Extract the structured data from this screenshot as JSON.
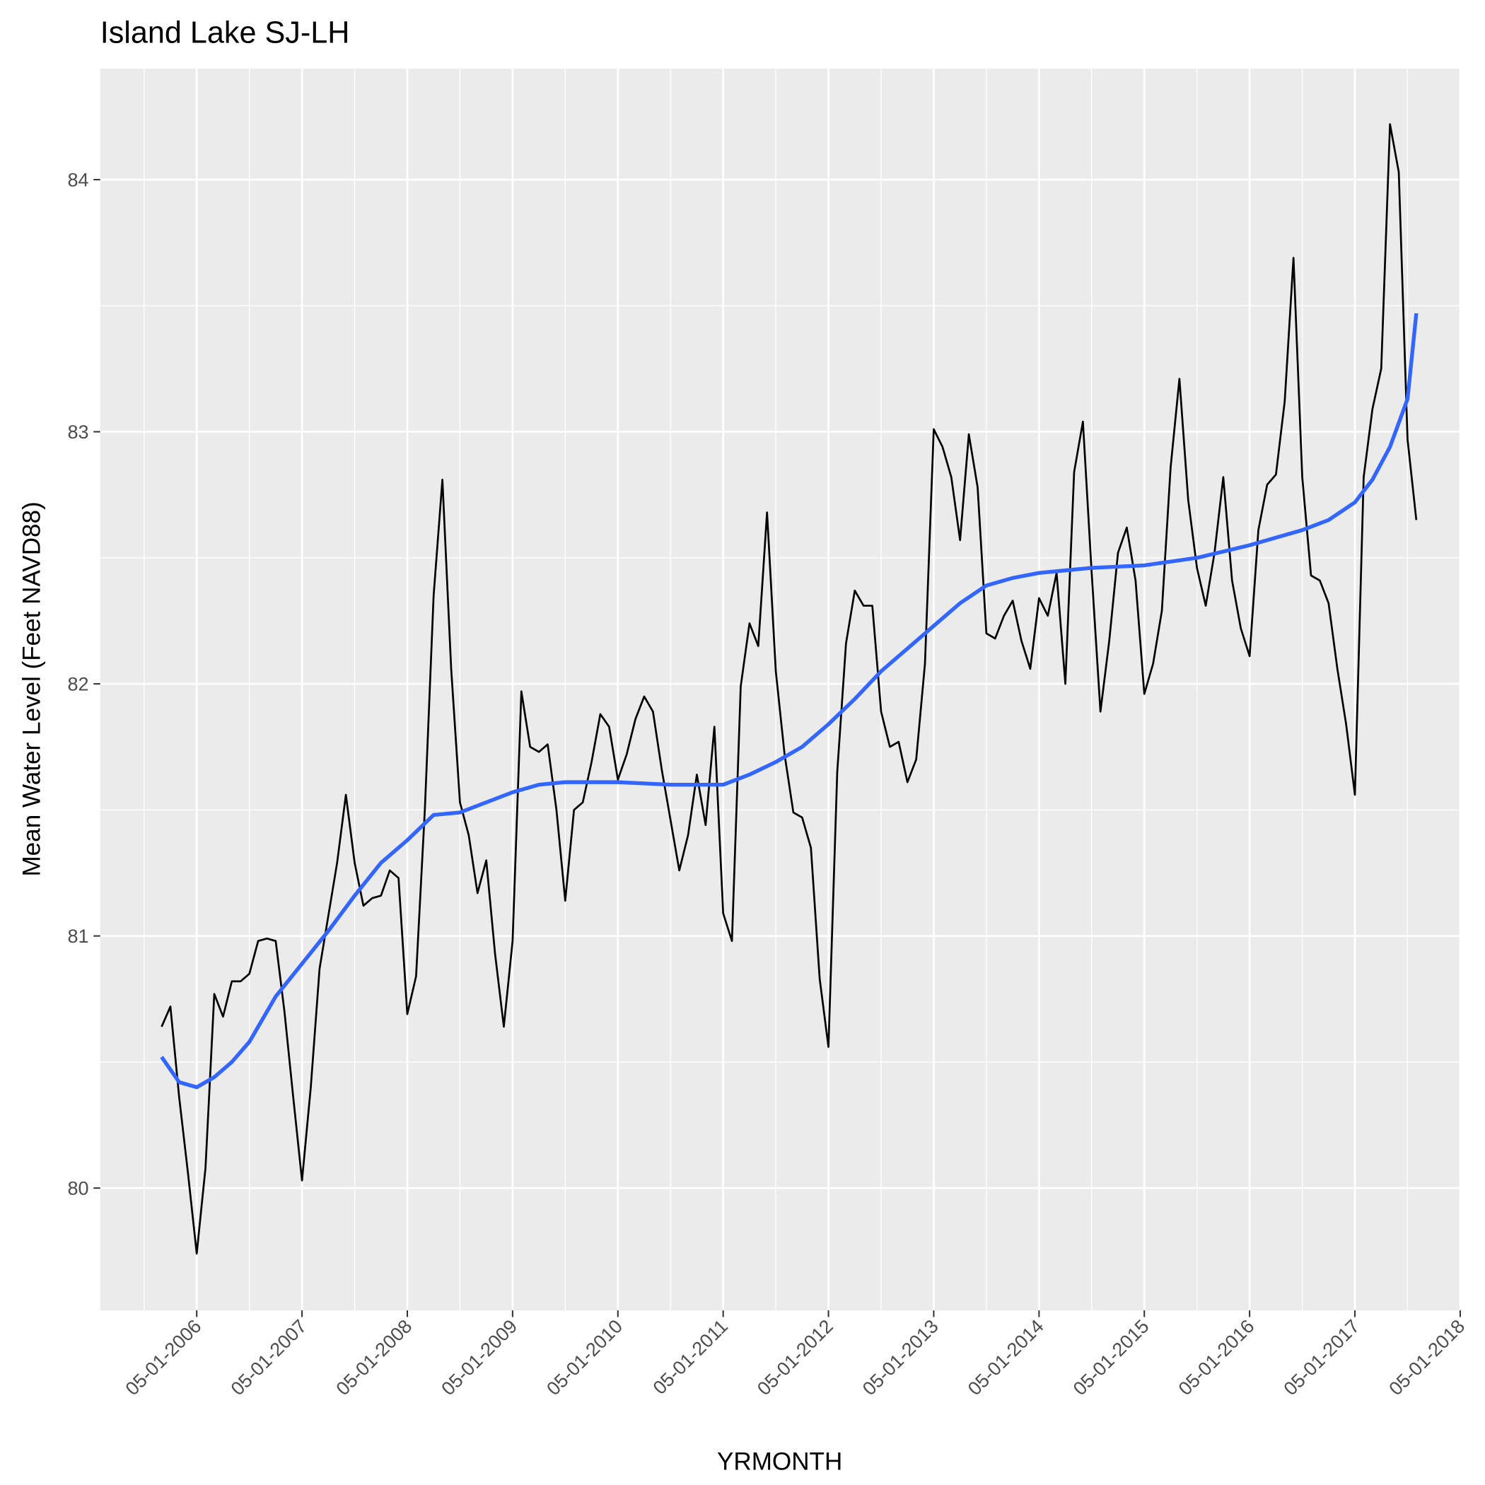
{
  "chart_data": {
    "type": "line",
    "title": "Island Lake SJ-LH",
    "x_label": "YRMONTH",
    "y_label": "Mean Water Level (Feet NAVD88)",
    "x": [
      "2005-09",
      "2005-10",
      "2005-11",
      "2005-12",
      "2006-01",
      "2006-02",
      "2006-03",
      "2006-04",
      "2006-05",
      "2006-06",
      "2006-07",
      "2006-08",
      "2006-09",
      "2006-10",
      "2006-11",
      "2006-12",
      "2007-01",
      "2007-02",
      "2007-03",
      "2007-04",
      "2007-05",
      "2007-06",
      "2007-07",
      "2007-08",
      "2007-09",
      "2007-10",
      "2007-11",
      "2007-12",
      "2008-01",
      "2008-02",
      "2008-03",
      "2008-04",
      "2008-05",
      "2008-06",
      "2008-07",
      "2008-08",
      "2008-09",
      "2008-10",
      "2008-11",
      "2008-12",
      "2009-01",
      "2009-02",
      "2009-03",
      "2009-04",
      "2009-05",
      "2009-06",
      "2009-07",
      "2009-08",
      "2009-09",
      "2009-10",
      "2009-11",
      "2009-12",
      "2010-01",
      "2010-02",
      "2010-03",
      "2010-04",
      "2010-05",
      "2010-06",
      "2010-07",
      "2010-08",
      "2010-09",
      "2010-10",
      "2010-11",
      "2010-12",
      "2011-01",
      "2011-02",
      "2011-03",
      "2011-04",
      "2011-05",
      "2011-06",
      "2011-07",
      "2011-08",
      "2011-09",
      "2011-10",
      "2011-11",
      "2011-12",
      "2012-01",
      "2012-02",
      "2012-03",
      "2012-04",
      "2012-05",
      "2012-06",
      "2012-07",
      "2012-08",
      "2012-09",
      "2012-10",
      "2012-11",
      "2012-12",
      "2013-01",
      "2013-02",
      "2013-03",
      "2013-04",
      "2013-05",
      "2013-06",
      "2013-07",
      "2013-08",
      "2013-09",
      "2013-10",
      "2013-11",
      "2013-12",
      "2014-01",
      "2014-02",
      "2014-03",
      "2014-04",
      "2014-05",
      "2014-06",
      "2014-07",
      "2014-08",
      "2014-09",
      "2014-10",
      "2014-11",
      "2014-12",
      "2015-01",
      "2015-02",
      "2015-03",
      "2015-04",
      "2015-05",
      "2015-06",
      "2015-07",
      "2015-08",
      "2015-09",
      "2015-10",
      "2015-11",
      "2015-12",
      "2016-01",
      "2016-02",
      "2016-03",
      "2016-04",
      "2016-05",
      "2016-06",
      "2016-07",
      "2016-08",
      "2016-09",
      "2016-10",
      "2016-11",
      "2016-12",
      "2017-01",
      "2017-02",
      "2017-03",
      "2017-04",
      "2017-05",
      "2017-06",
      "2017-07",
      "2017-08"
    ],
    "series": [
      {
        "color": "#000000",
        "values": [
          80.64,
          80.72,
          80.36,
          80.06,
          79.74,
          80.08,
          80.77,
          80.68,
          80.82,
          80.82,
          80.85,
          80.98,
          80.99,
          80.98,
          80.7,
          80.36,
          80.03,
          80.4,
          80.87,
          81.08,
          81.29,
          81.56,
          81.29,
          81.12,
          81.15,
          81.16,
          81.26,
          81.23,
          80.69,
          80.84,
          81.5,
          82.35,
          82.81,
          82.06,
          81.53,
          81.4,
          81.17,
          81.3,
          80.93,
          80.64,
          80.98,
          81.97,
          81.75,
          81.73,
          81.76,
          81.5,
          81.14,
          81.5,
          81.53,
          81.69,
          81.88,
          81.83,
          81.62,
          81.72,
          81.86,
          81.95,
          81.89,
          81.66,
          81.46,
          81.26,
          81.4,
          81.64,
          81.44,
          81.83,
          81.09,
          80.98,
          81.99,
          82.24,
          82.15,
          82.68,
          82.05,
          81.72,
          81.49,
          81.47,
          81.35,
          80.83,
          80.56,
          81.65,
          82.16,
          82.37,
          82.31,
          82.31,
          81.89,
          81.75,
          81.77,
          81.61,
          81.7,
          82.08,
          83.01,
          82.94,
          82.82,
          82.57,
          82.99,
          82.78,
          82.2,
          82.18,
          82.27,
          82.33,
          82.17,
          82.06,
          82.34,
          82.27,
          82.44,
          82.0,
          82.84,
          83.04,
          82.44,
          81.89,
          82.17,
          82.52,
          82.62,
          82.41,
          81.96,
          82.08,
          82.29,
          82.86,
          83.21,
          82.73,
          82.46,
          82.31,
          82.52,
          82.82,
          82.41,
          82.22,
          82.11,
          82.61,
          82.79,
          82.83,
          83.12,
          83.69,
          82.82,
          82.43,
          82.41,
          82.32,
          82.06,
          81.84,
          81.56,
          82.82,
          83.09,
          83.25,
          84.22,
          84.03,
          82.97,
          82.65
        ]
      },
      {
        "color": "#3366ff",
        "x": [
          "2005-09",
          "2005-11",
          "2006-01",
          "2006-03",
          "2006-05",
          "2006-07",
          "2006-10",
          "2007-01",
          "2007-04",
          "2007-07",
          "2007-10",
          "2008-01",
          "2008-04",
          "2008-07",
          "2008-10",
          "2009-01",
          "2009-04",
          "2009-07",
          "2010-01",
          "2010-07",
          "2011-01",
          "2011-04",
          "2011-07",
          "2011-10",
          "2012-01",
          "2012-04",
          "2012-07",
          "2012-10",
          "2013-01",
          "2013-04",
          "2013-07",
          "2013-10",
          "2014-01",
          "2014-07",
          "2015-01",
          "2015-07",
          "2016-01",
          "2016-07",
          "2016-10",
          "2017-01",
          "2017-03",
          "2017-05",
          "2017-07",
          "2017-08"
        ],
        "values": [
          80.52,
          80.42,
          80.4,
          80.44,
          80.5,
          80.58,
          80.76,
          80.89,
          81.02,
          81.16,
          81.29,
          81.38,
          81.48,
          81.49,
          81.53,
          81.57,
          81.6,
          81.61,
          81.61,
          81.6,
          81.6,
          81.64,
          81.69,
          81.75,
          81.84,
          81.94,
          82.05,
          82.14,
          82.23,
          82.32,
          82.39,
          82.42,
          82.44,
          82.46,
          82.47,
          82.5,
          82.55,
          82.61,
          82.65,
          82.72,
          82.81,
          82.94,
          83.13,
          83.47
        ]
      }
    ],
    "xlim": [
      "2005-02",
      "2018-01"
    ],
    "xticks": [
      {
        "value": "2006-01",
        "label": "05-01-2006"
      },
      {
        "value": "2007-01",
        "label": "05-01-2007"
      },
      {
        "value": "2008-01",
        "label": "05-01-2008"
      },
      {
        "value": "2009-01",
        "label": "05-01-2009"
      },
      {
        "value": "2010-01",
        "label": "05-01-2010"
      },
      {
        "value": "2011-01",
        "label": "05-01-2011"
      },
      {
        "value": "2012-01",
        "label": "05-01-2012"
      },
      {
        "value": "2013-01",
        "label": "05-01-2013"
      },
      {
        "value": "2014-01",
        "label": "05-01-2014"
      },
      {
        "value": "2015-01",
        "label": "05-01-2015"
      },
      {
        "value": "2016-01",
        "label": "05-01-2016"
      },
      {
        "value": "2017-01",
        "label": "05-01-2017"
      },
      {
        "value": "2018-01",
        "label": "05-01-2018"
      }
    ],
    "ylim": [
      79.515,
      84.44
    ],
    "yticks": [
      80,
      81,
      82,
      83,
      84
    ],
    "grid": true
  }
}
